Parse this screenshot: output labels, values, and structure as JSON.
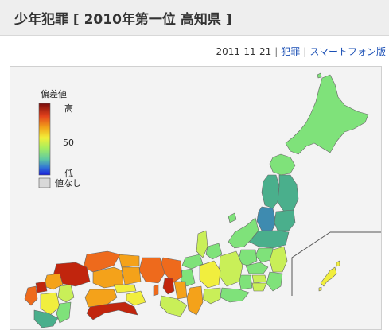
{
  "page": {
    "title": "少年犯罪 [ 2010年第一位 高知県 ]",
    "date": "2011-11-21",
    "sep1": "|",
    "sep2": "|",
    "category_link": "犯罪",
    "smartphone_link": "スマートフォン版"
  },
  "legend": {
    "title": "偏差値",
    "high": "高",
    "mid": "50",
    "low": "低",
    "none": "値なし",
    "gradient_colors": [
      "#7a0c0c",
      "#e4431c",
      "#f2a51a",
      "#f2ef3a",
      "#a8ee5e",
      "#5fc9a3",
      "#2f71d8",
      "#1b1fd9"
    ],
    "no_value_color": "#d9d9d9"
  },
  "map": {
    "colors": {
      "very_high": "#c1250d",
      "high": "#ee6a1c",
      "mid_high": "#f4a21a",
      "above_avg": "#f1ee3e",
      "near_avg": "#c9ef58",
      "avg": "#7fe27a",
      "below_avg": "#4aaf8c",
      "low": "#3e8bb0"
    }
  }
}
